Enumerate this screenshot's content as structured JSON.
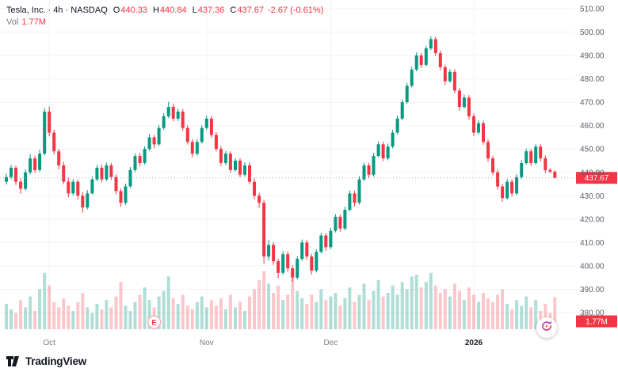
{
  "header": {
    "symbol_title": "Tesla, Inc. · 4h · NASDAQ",
    "ohlc": {
      "o_label": "O",
      "o": "440.33",
      "h_label": "H",
      "h": "440.84",
      "l_label": "L",
      "l": "437.36",
      "c_label": "C",
      "c": "437.67",
      "change": "-2.67 (-0.61%)"
    },
    "vol_label": "Vol",
    "vol_value": "1.77M"
  },
  "badges": {
    "last_price": "437.67",
    "last_volume": "1.77M"
  },
  "footer": {
    "logo_text": "TradingView"
  },
  "colors": {
    "up": "#089981",
    "down": "#f23645",
    "vol_up": "rgba(8,153,129,0.32)",
    "vol_down": "rgba(242,54,69,0.28)",
    "badge": "#f23645",
    "badge_text": "#ffffff",
    "grid": "#f1f3f6",
    "axis_text": "#5b5e68",
    "muted_text": "#787b86",
    "dark_text": "#131722",
    "last_price_line": "#a5a8b1"
  },
  "chart_data": {
    "type": "candlestick",
    "title": "Tesla, Inc. 4h NASDAQ",
    "ylabel": "Price (USD)",
    "ylim": [
      380,
      510
    ],
    "y_ticks": [
      510,
      500,
      490,
      480,
      470,
      460,
      450,
      440,
      430,
      420,
      410,
      400,
      390,
      380
    ],
    "x_ticks": [
      {
        "label": "Oct",
        "index": 9,
        "bold": false
      },
      {
        "label": "Nov",
        "index": 42,
        "bold": false
      },
      {
        "label": "Dec",
        "index": 68,
        "bold": false
      },
      {
        "label": "2026",
        "index": 98,
        "bold": true
      }
    ],
    "last_price": 437.67,
    "earnings_marker": {
      "index": 31,
      "label": "E"
    },
    "candles": [
      [
        436,
        439.5,
        434.8,
        438
      ],
      [
        438,
        443.2,
        437.1,
        442
      ],
      [
        442,
        442.9,
        434.6,
        436
      ],
      [
        436,
        437.4,
        430.9,
        433
      ],
      [
        433,
        441.2,
        432.2,
        440
      ],
      [
        440,
        447.8,
        439.1,
        446
      ],
      [
        446,
        447.2,
        439.8,
        441
      ],
      [
        441,
        449.6,
        440.2,
        448
      ],
      [
        448,
        467.5,
        447.3,
        466
      ],
      [
        466,
        468.2,
        455.4,
        457
      ],
      [
        457,
        458.3,
        447.6,
        449
      ],
      [
        449,
        450.1,
        441.2,
        443
      ],
      [
        443,
        444.6,
        434.9,
        436
      ],
      [
        436,
        437.8,
        429.3,
        431
      ],
      [
        431,
        437.2,
        430.1,
        436
      ],
      [
        436,
        437.0,
        428.4,
        430
      ],
      [
        430,
        431.5,
        422.8,
        425
      ],
      [
        425,
        432.4,
        424.2,
        431
      ],
      [
        431,
        438.3,
        430.5,
        437
      ],
      [
        437,
        443.1,
        436.2,
        442
      ],
      [
        442,
        443.4,
        435.7,
        437
      ],
      [
        437,
        444.2,
        436.3,
        443
      ],
      [
        443,
        444.0,
        436.8,
        438
      ],
      [
        438,
        439.2,
        430.6,
        432
      ],
      [
        432,
        433.1,
        425.3,
        427
      ],
      [
        427,
        435.2,
        426.1,
        434
      ],
      [
        434,
        442.3,
        433.4,
        441
      ],
      [
        441,
        448.1,
        440.2,
        447
      ],
      [
        447,
        448.3,
        442.5,
        444
      ],
      [
        444,
        451.2,
        443.3,
        450
      ],
      [
        450,
        456.4,
        449.2,
        455
      ],
      [
        455,
        456.1,
        450.3,
        452
      ],
      [
        452,
        460.2,
        451.4,
        459
      ],
      [
        459,
        465.3,
        458.1,
        464
      ],
      [
        464,
        470.2,
        463.2,
        468
      ],
      [
        468,
        469.4,
        461.8,
        463
      ],
      [
        463,
        467.3,
        462.0,
        466
      ],
      [
        466,
        467.1,
        457.6,
        459
      ],
      [
        459,
        460.2,
        451.9,
        453
      ],
      [
        453,
        454.3,
        446.5,
        448
      ],
      [
        448,
        454.2,
        447.1,
        453
      ],
      [
        453,
        460.1,
        452.3,
        459
      ],
      [
        459,
        464.3,
        458.2,
        463
      ],
      [
        463,
        464.1,
        454.8,
        456
      ],
      [
        456,
        457.2,
        448.9,
        450
      ],
      [
        450,
        451.3,
        442.7,
        444
      ],
      [
        444,
        449.2,
        443.1,
        448
      ],
      [
        448,
        449.0,
        439.8,
        441
      ],
      [
        441,
        446.2,
        440.3,
        445
      ],
      [
        445,
        446.1,
        437.9,
        439
      ],
      [
        439,
        444.3,
        438.2,
        443
      ],
      [
        443,
        444.2,
        434.8,
        436
      ],
      [
        436,
        437.5,
        428.6,
        430
      ],
      [
        430,
        431.2,
        424.9,
        427
      ],
      [
        427,
        428.3,
        400.9,
        404
      ],
      [
        404,
        411.2,
        402.3,
        409
      ],
      [
        409,
        410.1,
        400.4,
        402
      ],
      [
        402,
        403.2,
        394.8,
        397
      ],
      [
        397,
        406.3,
        396.1,
        405
      ],
      [
        405,
        406.2,
        397.4,
        399
      ],
      [
        399,
        400.3,
        393.2,
        395
      ],
      [
        395,
        404.2,
        394.1,
        403
      ],
      [
        403,
        411.3,
        402.2,
        410
      ],
      [
        410,
        411.1,
        402.6,
        404
      ],
      [
        404,
        405.2,
        396.3,
        398
      ],
      [
        398,
        407.1,
        397.2,
        406
      ],
      [
        406,
        414.2,
        405.3,
        413
      ],
      [
        413,
        414.1,
        406.4,
        408
      ],
      [
        408,
        416.3,
        407.2,
        415
      ],
      [
        415,
        422.2,
        414.3,
        421
      ],
      [
        421,
        422.1,
        414.6,
        416
      ],
      [
        416,
        425.3,
        415.2,
        424
      ],
      [
        424,
        432.2,
        423.3,
        431
      ],
      [
        431,
        432.1,
        425.4,
        427
      ],
      [
        427,
        438.3,
        426.2,
        437
      ],
      [
        437,
        444.2,
        436.3,
        443
      ],
      [
        443,
        444.1,
        437.6,
        439
      ],
      [
        439,
        448.3,
        438.2,
        447
      ],
      [
        447,
        453.2,
        446.3,
        452
      ],
      [
        452,
        453.1,
        444.8,
        446
      ],
      [
        446,
        452.3,
        445.2,
        451
      ],
      [
        451,
        458.2,
        450.3,
        457
      ],
      [
        457,
        464.3,
        456.2,
        463
      ],
      [
        463,
        471.2,
        462.3,
        470
      ],
      [
        470,
        478.3,
        469.2,
        477
      ],
      [
        477,
        485.2,
        476.3,
        484
      ],
      [
        484,
        491.3,
        483.2,
        490
      ],
      [
        490,
        491.1,
        484.6,
        486
      ],
      [
        486,
        494.2,
        485.3,
        493
      ],
      [
        493,
        498.3,
        492.2,
        497
      ],
      [
        497,
        498.1,
        489.8,
        491
      ],
      [
        491,
        492.2,
        483.6,
        485
      ],
      [
        485,
        486.1,
        477.4,
        479
      ],
      [
        479,
        484.2,
        478.3,
        483
      ],
      [
        483,
        484.1,
        473.8,
        475
      ],
      [
        475,
        476.2,
        466.4,
        468
      ],
      [
        468,
        473.3,
        467.2,
        472
      ],
      [
        472,
        473.1,
        462.6,
        464
      ],
      [
        464,
        465.2,
        455.4,
        457
      ],
      [
        457,
        462.3,
        456.2,
        461
      ],
      [
        461,
        462.1,
        451.8,
        453
      ],
      [
        453,
        454.2,
        444.6,
        446
      ],
      [
        446,
        447.1,
        438.8,
        440
      ],
      [
        440,
        441.2,
        432.6,
        434
      ],
      [
        434,
        435.1,
        427.4,
        429
      ],
      [
        429,
        437.2,
        428.3,
        436
      ],
      [
        436,
        437.1,
        429.6,
        431
      ],
      [
        431,
        439.2,
        430.3,
        438
      ],
      [
        438,
        445.3,
        437.2,
        444
      ],
      [
        444,
        450.2,
        443.3,
        449
      ],
      [
        449,
        450.1,
        442.8,
        444
      ],
      [
        444,
        452.2,
        443.3,
        451
      ],
      [
        451,
        452.1,
        444.6,
        446
      ],
      [
        446,
        447.2,
        439.8,
        441
      ],
      [
        441,
        441.8,
        439.6,
        440.33
      ],
      [
        440.33,
        440.84,
        437.36,
        437.67
      ]
    ],
    "volumes_m": [
      1.4,
      1.1,
      0.9,
      1.6,
      1.2,
      1.8,
      1.0,
      2.2,
      3.1,
      2.4,
      1.5,
      1.2,
      1.7,
      1.3,
      1.0,
      1.5,
      2.0,
      1.2,
      0.9,
      1.4,
      1.1,
      1.6,
      1.2,
      1.8,
      2.6,
      1.3,
      1.0,
      1.5,
      1.9,
      2.3,
      1.6,
      1.2,
      1.8,
      2.1,
      2.9,
      1.7,
      1.4,
      1.9,
      1.3,
      1.1,
      1.5,
      1.8,
      1.2,
      1.6,
      1.3,
      1.7,
      1.1,
      1.9,
      1.2,
      1.5,
      1.0,
      1.8,
      2.2,
      2.7,
      3.2,
      2.5,
      2.0,
      2.4,
      1.6,
      1.9,
      2.8,
      2.1,
      1.7,
      1.4,
      1.9,
      1.5,
      2.2,
      1.6,
      1.8,
      2.0,
      1.3,
      1.7,
      2.3,
      1.5,
      1.9,
      2.5,
      1.6,
      2.1,
      2.7,
      1.8,
      2.0,
      2.4,
      1.9,
      2.6,
      2.2,
      2.9,
      3.0,
      2.3,
      2.6,
      3.1,
      2.4,
      2.0,
      2.2,
      1.8,
      2.5,
      2.1,
      1.6,
      2.3,
      1.9,
      1.5,
      2.0,
      1.7,
      1.5,
      1.9,
      2.2,
      1.4,
      1.1,
      1.6,
      1.3,
      1.8,
      1.2,
      1.6,
      1.0,
      1.4,
      0.9,
      1.77
    ]
  }
}
